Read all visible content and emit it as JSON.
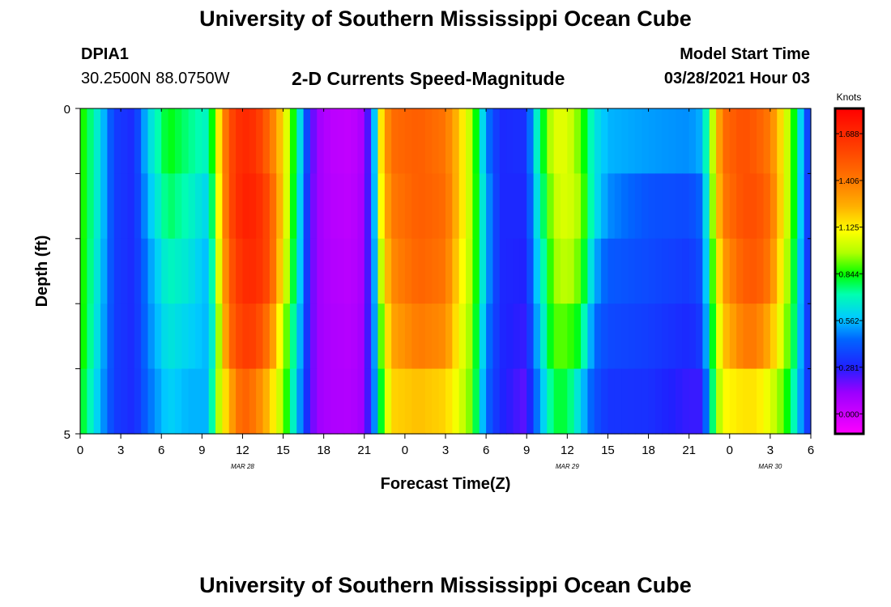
{
  "header": {
    "title": "University of Southern Mississippi Ocean Cube",
    "station_id": "DPIA1",
    "coordinates": "30.2500N  88.0750W",
    "subtitle": "2-D Currents Speed-Magnitude",
    "model_start_label": "Model Start Time",
    "model_start_value": "03/28/2021 Hour 03"
  },
  "footer": {
    "title": "University of Southern Mississippi Ocean Cube"
  },
  "chart_data": {
    "type": "heatmap",
    "title": "2-D Currents Speed-Magnitude",
    "xlabel": "Forecast Time(Z)",
    "ylabel": "Depth (ft)",
    "x_tick_labels": [
      "0",
      "3",
      "6",
      "9",
      "12",
      "15",
      "18",
      "21",
      "0",
      "3",
      "6",
      "9",
      "12",
      "15",
      "18",
      "21",
      "0",
      "3",
      "6"
    ],
    "x_range_hours": [
      0,
      54
    ],
    "day_labels": [
      {
        "label": "MAR 28",
        "hour": 12
      },
      {
        "label": "MAR 29",
        "hour": 36
      },
      {
        "label": "MAR 30",
        "hour": 51
      }
    ],
    "y_tick_labels": [
      {
        "value": 0,
        "label": "0"
      },
      {
        "value": 1,
        "label": ""
      },
      {
        "value": 2,
        "label": ""
      },
      {
        "value": 3,
        "label": ""
      },
      {
        "value": 4,
        "label": ""
      },
      {
        "value": 5,
        "label": "5"
      }
    ],
    "y_range": [
      0,
      5
    ],
    "colorbar": {
      "unit_label": "Knots",
      "min": -0.12,
      "max": 1.84,
      "tick_values": [
        0.0,
        0.281,
        0.562,
        0.844,
        1.125,
        1.406,
        1.688
      ],
      "tick_labels": [
        "0.000",
        "0.281",
        "0.562",
        "0.844",
        "1.125",
        "1.406",
        "1.688"
      ],
      "stops": [
        {
          "value": -0.12,
          "color": "#ff00ff"
        },
        {
          "value": 0.13,
          "color": "#9a00ff"
        },
        {
          "value": 0.28,
          "color": "#2020ff"
        },
        {
          "value": 0.45,
          "color": "#0066ff"
        },
        {
          "value": 0.58,
          "color": "#00ccff"
        },
        {
          "value": 0.72,
          "color": "#00ffb0"
        },
        {
          "value": 0.84,
          "color": "#00ff00"
        },
        {
          "value": 0.97,
          "color": "#b0ff00"
        },
        {
          "value": 1.1,
          "color": "#ffff00"
        },
        {
          "value": 1.25,
          "color": "#ffb000"
        },
        {
          "value": 1.4,
          "color": "#ff7a00"
        },
        {
          "value": 1.6,
          "color": "#ff4000"
        },
        {
          "value": 1.84,
          "color": "#ff0000"
        }
      ]
    },
    "depth_layers": [
      0,
      1,
      2,
      3,
      4
    ],
    "keyframes": [
      {
        "hour": 0,
        "speeds": [
          0.9,
          0.9,
          0.9,
          0.9,
          0.85
        ]
      },
      {
        "hour": 1.5,
        "speeds": [
          0.62,
          0.62,
          0.6,
          0.58,
          0.55
        ]
      },
      {
        "hour": 2.5,
        "speeds": [
          0.35,
          0.35,
          0.35,
          0.35,
          0.35
        ]
      },
      {
        "hour": 4,
        "speeds": [
          0.3,
          0.3,
          0.3,
          0.3,
          0.3
        ]
      },
      {
        "hour": 5,
        "speeds": [
          0.6,
          0.55,
          0.5,
          0.48,
          0.45
        ]
      },
      {
        "hour": 6.5,
        "speeds": [
          0.84,
          0.78,
          0.7,
          0.65,
          0.6
        ]
      },
      {
        "hour": 8,
        "speeds": [
          0.75,
          0.7,
          0.65,
          0.6,
          0.55
        ]
      },
      {
        "hour": 9.5,
        "speeds": [
          0.68,
          0.6,
          0.55,
          0.55,
          0.55
        ]
      },
      {
        "hour": 10,
        "speeds": [
          1.0,
          0.95,
          0.9,
          0.8,
          0.9
        ]
      },
      {
        "hour": 11,
        "speeds": [
          1.55,
          1.55,
          1.5,
          1.45,
          1.25
        ]
      },
      {
        "hour": 12,
        "speeds": [
          1.7,
          1.72,
          1.68,
          1.62,
          1.5
        ]
      },
      {
        "hour": 13,
        "speeds": [
          1.65,
          1.7,
          1.68,
          1.6,
          1.4
        ]
      },
      {
        "hour": 14,
        "speeds": [
          1.45,
          1.55,
          1.55,
          1.4,
          1.2
        ]
      },
      {
        "hour": 15,
        "speeds": [
          1.15,
          1.15,
          1.1,
          1.0,
          0.95
        ]
      },
      {
        "hour": 16,
        "speeds": [
          0.75,
          0.72,
          0.7,
          0.65,
          0.6
        ]
      },
      {
        "hour": 17,
        "speeds": [
          0.25,
          0.22,
          0.22,
          0.22,
          0.22
        ]
      },
      {
        "hour": 17.5,
        "speeds": [
          0.12,
          0.12,
          0.12,
          0.12,
          0.12
        ]
      },
      {
        "hour": 18.5,
        "speeds": [
          0.05,
          0.06,
          0.07,
          0.08,
          0.08
        ]
      },
      {
        "hour": 20,
        "speeds": [
          0.03,
          0.04,
          0.05,
          0.06,
          0.07
        ]
      },
      {
        "hour": 21,
        "speeds": [
          0.1,
          0.11,
          0.11,
          0.12,
          0.12
        ]
      },
      {
        "hour": 21.6,
        "speeds": [
          0.4,
          0.4,
          0.4,
          0.4,
          0.4
        ]
      },
      {
        "hour": 22.3,
        "speeds": [
          1.2,
          1.15,
          1.05,
          0.95,
          0.85
        ]
      },
      {
        "hour": 23,
        "speeds": [
          1.45,
          1.4,
          1.35,
          1.28,
          1.18
        ]
      },
      {
        "hour": 25,
        "speeds": [
          1.5,
          1.5,
          1.48,
          1.4,
          1.22
        ]
      },
      {
        "hour": 27,
        "speeds": [
          1.42,
          1.45,
          1.42,
          1.35,
          1.18
        ]
      },
      {
        "hour": 28,
        "speeds": [
          1.2,
          1.2,
          1.15,
          1.1,
          1.05
        ]
      },
      {
        "hour": 29,
        "speeds": [
          0.95,
          0.95,
          0.95,
          0.92,
          0.9
        ]
      },
      {
        "hour": 30,
        "speeds": [
          0.5,
          0.55,
          0.55,
          0.5,
          0.45
        ]
      },
      {
        "hour": 31,
        "speeds": [
          0.3,
          0.3,
          0.3,
          0.3,
          0.3
        ]
      },
      {
        "hour": 33,
        "speeds": [
          0.32,
          0.3,
          0.28,
          0.25,
          0.2
        ]
      },
      {
        "hour": 33.5,
        "speeds": [
          0.6,
          0.55,
          0.5,
          0.45,
          0.4
        ]
      },
      {
        "hour": 35,
        "speeds": [
          1.05,
          1.0,
          0.95,
          0.9,
          0.8
        ]
      },
      {
        "hour": 36,
        "speeds": [
          1.05,
          1.05,
          1.0,
          0.9,
          0.8
        ]
      },
      {
        "hour": 37,
        "speeds": [
          0.9,
          0.95,
          0.9,
          0.8,
          0.6
        ]
      },
      {
        "hour": 38,
        "speeds": [
          0.65,
          0.65,
          0.55,
          0.45,
          0.4
        ]
      },
      {
        "hour": 39,
        "speeds": [
          0.55,
          0.5,
          0.42,
          0.38,
          0.33
        ]
      },
      {
        "hour": 42,
        "speeds": [
          0.52,
          0.4,
          0.38,
          0.35,
          0.32
        ]
      },
      {
        "hour": 45,
        "speeds": [
          0.5,
          0.38,
          0.34,
          0.3,
          0.25
        ]
      },
      {
        "hour": 46,
        "speeds": [
          0.55,
          0.45,
          0.4,
          0.35,
          0.25
        ]
      },
      {
        "hour": 46.5,
        "speeds": [
          0.85,
          0.8,
          0.75,
          0.7,
          0.65
        ]
      },
      {
        "hour": 47.5,
        "speeds": [
          1.45,
          1.4,
          1.3,
          1.2,
          1.1
        ]
      },
      {
        "hour": 49,
        "speeds": [
          1.55,
          1.55,
          1.5,
          1.4,
          1.15
        ]
      },
      {
        "hour": 50,
        "speeds": [
          1.5,
          1.55,
          1.52,
          1.4,
          1.15
        ]
      },
      {
        "hour": 51,
        "speeds": [
          1.4,
          1.45,
          1.4,
          1.25,
          1.05
        ]
      },
      {
        "hour": 52,
        "speeds": [
          1.1,
          1.1,
          1.05,
          1.0,
          0.9
        ]
      },
      {
        "hour": 53,
        "speeds": [
          0.75,
          0.75,
          0.72,
          0.7,
          0.65
        ]
      },
      {
        "hour": 53.5,
        "speeds": [
          0.45,
          0.42,
          0.4,
          0.4,
          0.4
        ]
      },
      {
        "hour": 54,
        "speeds": [
          0.3,
          0.3,
          0.3,
          0.3,
          0.3
        ]
      }
    ]
  }
}
